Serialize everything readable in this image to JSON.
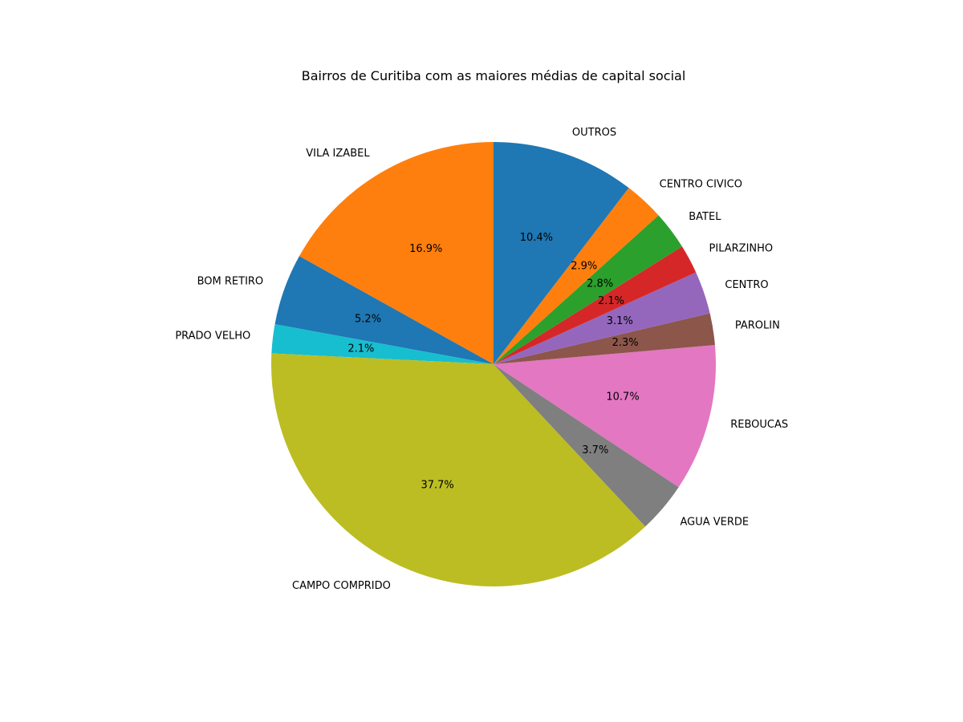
{
  "chart_data": {
    "type": "pie",
    "title": "Bairros de Curitiba com as maiores médias de capital social",
    "start_angle_deg": 90,
    "direction": "counterclockwise",
    "slices": [
      {
        "label": "VILA IZABEL",
        "value": 16.9,
        "pct_label": "16.9%",
        "color": "#ff7f0e"
      },
      {
        "label": "BOM RETIRO",
        "value": 5.2,
        "pct_label": "5.2%",
        "color": "#1f77b4"
      },
      {
        "label": "PRADO VELHO",
        "value": 2.1,
        "pct_label": "2.1%",
        "color": "#17becf"
      },
      {
        "label": "CAMPO COMPRIDO",
        "value": 37.7,
        "pct_label": "37.7%",
        "color": "#bcbd22"
      },
      {
        "label": "AGUA VERDE",
        "value": 3.7,
        "pct_label": "3.7%",
        "color": "#7f7f7f"
      },
      {
        "label": "REBOUCAS",
        "value": 10.7,
        "pct_label": "10.7%",
        "color": "#e377c2"
      },
      {
        "label": "PAROLIN",
        "value": 2.3,
        "pct_label": "2.3%",
        "color": "#8c564b"
      },
      {
        "label": "CENTRO",
        "value": 3.1,
        "pct_label": "3.1%",
        "color": "#9467bd"
      },
      {
        "label": "PILARZINHO",
        "value": 2.1,
        "pct_label": "2.1%",
        "color": "#d62728"
      },
      {
        "label": "BATEL",
        "value": 2.8,
        "pct_label": "2.8%",
        "color": "#2ca02c"
      },
      {
        "label": "CENTRO CIVICO",
        "value": 2.9,
        "pct_label": "2.9%",
        "color": "#ff7f0e"
      },
      {
        "label": "OUTROS",
        "value": 10.4,
        "pct_label": "10.4%",
        "color": "#1f77b4"
      }
    ]
  }
}
